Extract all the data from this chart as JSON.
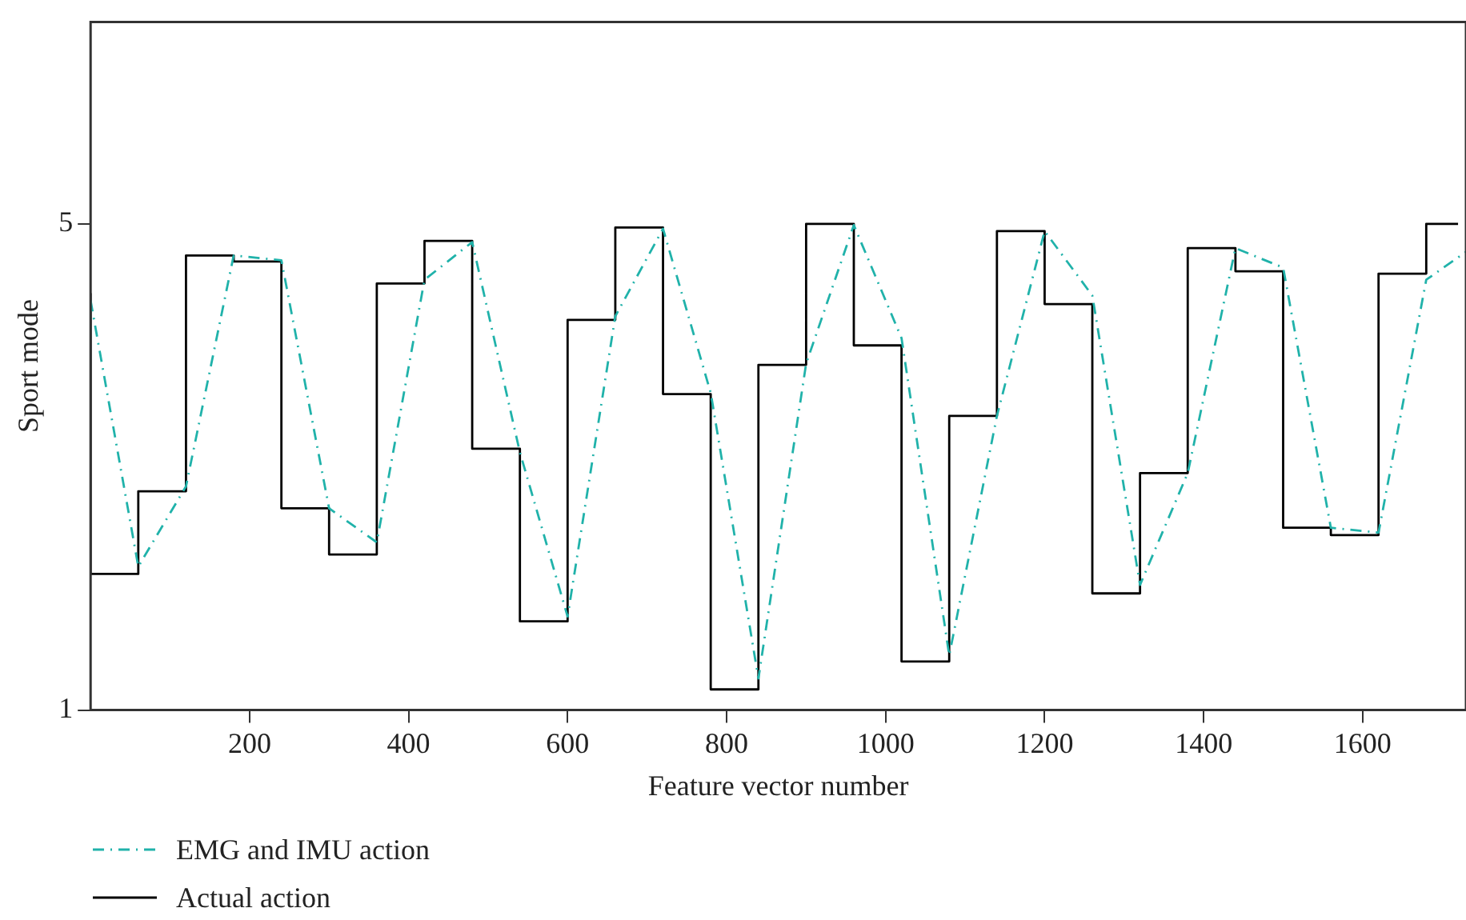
{
  "chart_data": {
    "type": "line",
    "xlabel": "Feature vector number",
    "ylabel": "Sport mode",
    "xlim": [
      0,
      1730
    ],
    "xticks": [
      200,
      400,
      600,
      800,
      1000,
      1200,
      1400,
      1600
    ],
    "ylim": [
      1,
      6.66
    ],
    "yticks": [
      1,
      5
    ],
    "grid": false,
    "legend": "bottom",
    "series": [
      {
        "name": "EMG and IMU action",
        "type": "line",
        "color": "#20b2aa",
        "line_style": "dashed",
        "x": [
          0,
          60,
          120,
          180,
          240,
          300,
          360,
          420,
          480,
          540,
          600,
          660,
          720,
          780,
          840,
          900,
          960,
          1020,
          1080,
          1140,
          1200,
          1260,
          1320,
          1380,
          1440,
          1500,
          1560,
          1620,
          1680,
          1730
        ],
        "values": [
          4.37,
          2.18,
          2.84,
          4.74,
          4.7,
          2.66,
          2.38,
          4.54,
          4.85,
          3.12,
          1.77,
          4.24,
          4.96,
          3.61,
          1.26,
          3.85,
          4.99,
          4.06,
          1.45,
          3.42,
          4.94,
          4.41,
          2.03,
          2.95,
          4.8,
          4.64,
          2.5,
          2.46,
          4.54,
          4.77
        ]
      },
      {
        "name": "Actual action",
        "type": "step",
        "color": "#000000",
        "line_style": "solid",
        "x": [
          0,
          60,
          120,
          180,
          240,
          300,
          360,
          420,
          480,
          540,
          600,
          660,
          720,
          780,
          840,
          900,
          960,
          1020,
          1080,
          1140,
          1200,
          1260,
          1320,
          1380,
          1440,
          1500,
          1560,
          1620,
          1680,
          1720
        ],
        "values": [
          4.43,
          2.12,
          2.8,
          4.74,
          4.69,
          2.66,
          2.28,
          4.51,
          4.86,
          3.15,
          1.73,
          4.21,
          4.97,
          3.6,
          1.17,
          3.84,
          5.0,
          4.0,
          1.4,
          3.42,
          4.94,
          4.34,
          1.96,
          2.95,
          4.8,
          4.61,
          2.5,
          2.44,
          4.59,
          5.0
        ]
      }
    ]
  }
}
